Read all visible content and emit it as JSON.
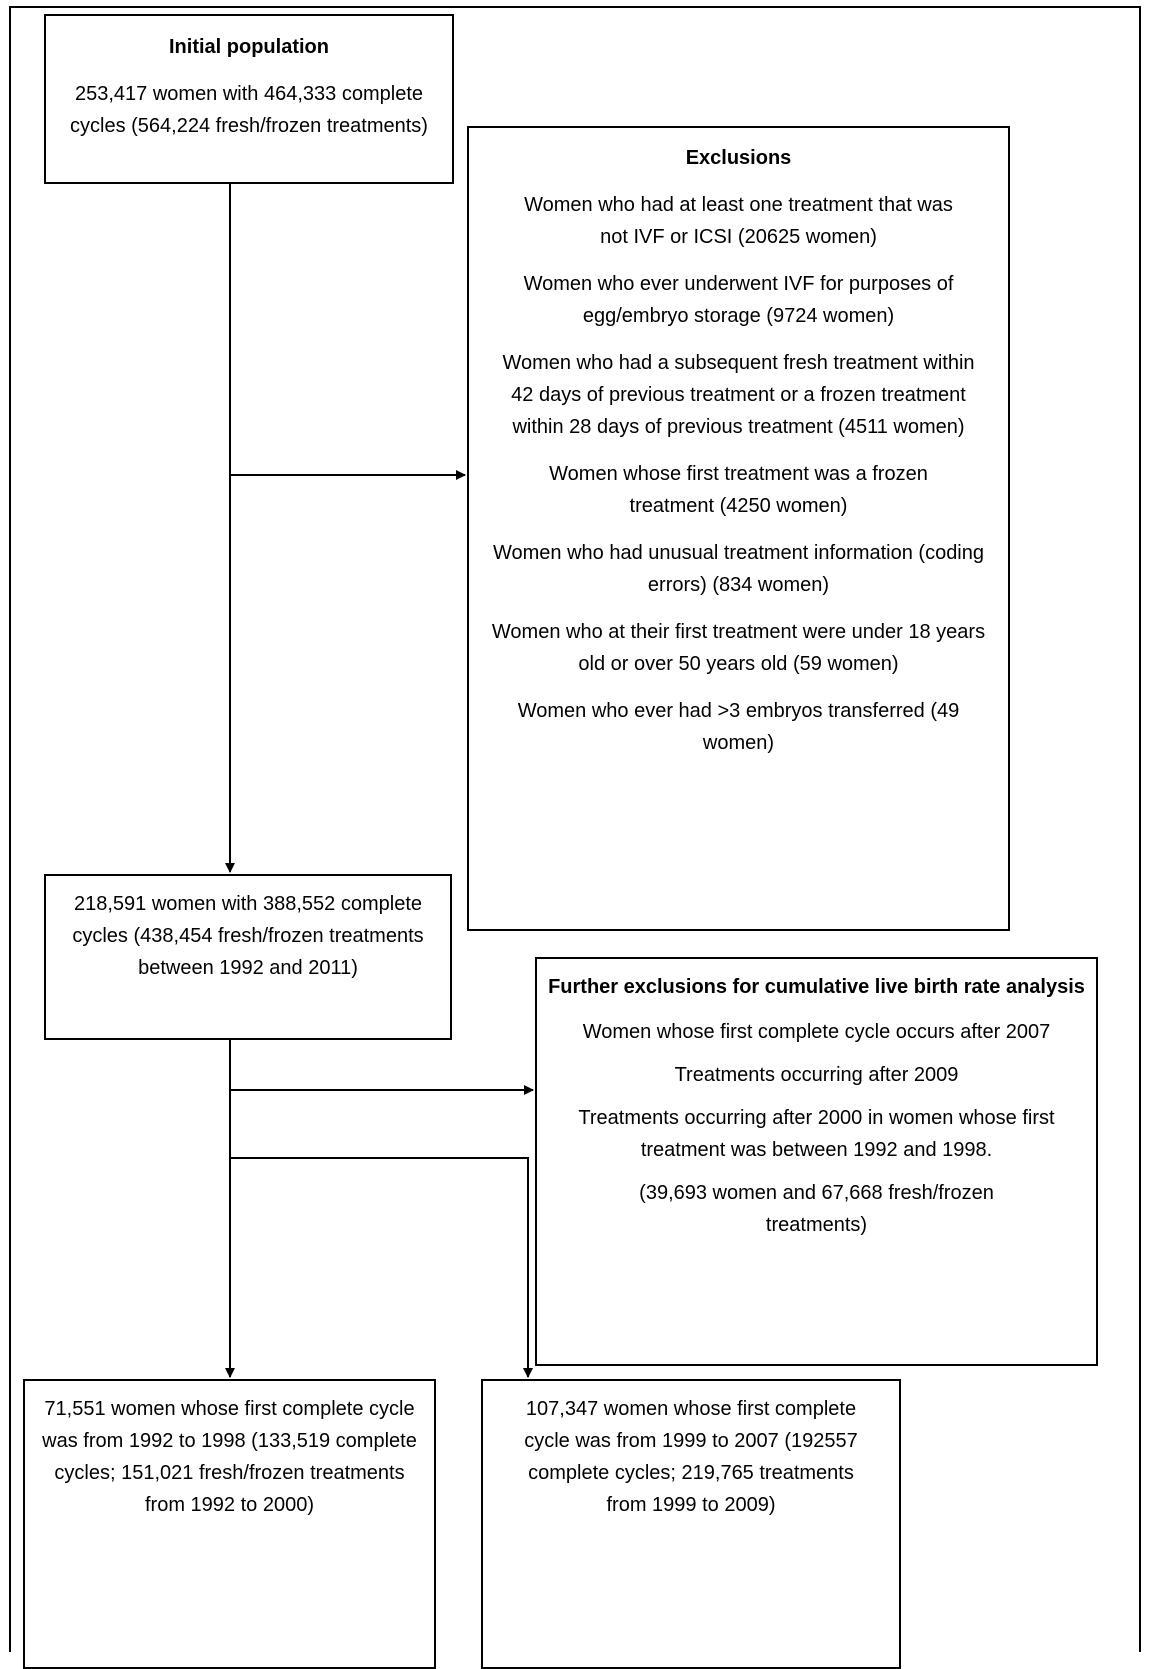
{
  "initial_population": {
    "title": "Initial population",
    "text": "253,417 women with 464,333 complete cycles (564,224 fresh/frozen treatments)"
  },
  "exclusions": {
    "title": "Exclusions",
    "items": [
      "Women who had at least one treatment that was not IVF or ICSI (20625 women)",
      "Women who ever underwent IVF for purposes of egg/embryo storage (9724 women)",
      "Women who had a subsequent fresh treatment within 42 days of previous treatment or a frozen treatment within 28 days of previous treatment (4511 women)",
      "Women whose first treatment was a frozen treatment (4250 women)",
      "Women who had unusual treatment information (coding errors) (834 women)",
      "Women who at their first treatment were under 18 years old or over 50 years old (59 women)",
      "Women who ever had >3 embryos transferred (49 women)"
    ]
  },
  "after_exclusions": {
    "text": "218,591 women with 388,552 complete cycles (438,454 fresh/frozen treatments between 1992 and 2011)"
  },
  "further_exclusions": {
    "title": "Further exclusions for cumulative live birth rate analysis",
    "items": [
      "Women whose first complete cycle occurs after 2007",
      "Treatments occurring after 2009",
      "Treatments occurring after 2000 in women whose first treatment was between 1992 and 1998.",
      "(39,693 women and 67,668 fresh/frozen treatments)"
    ]
  },
  "cohort_1992_1998": {
    "text": "71,551 women whose first complete cycle was from 1992 to 1998 (133,519 complete cycles; 151,021 fresh/frozen treatments from 1992 to 2000)"
  },
  "cohort_1999_2007": {
    "text": "107,347 women whose first complete cycle was from 1999 to 2007 (192557 complete cycles; 219,765 treatments from 1999 to 2009)"
  }
}
